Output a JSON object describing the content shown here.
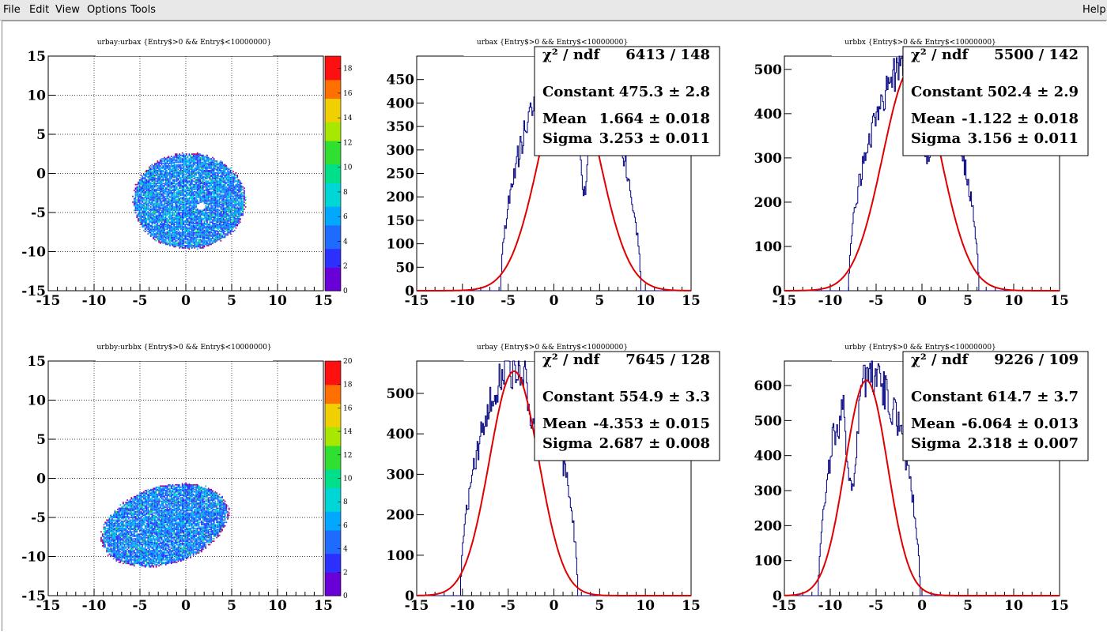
{
  "menu": {
    "file": "File",
    "edit": "Edit",
    "view": "View",
    "options": "Options",
    "tools": "Tools",
    "help": "Help"
  },
  "chart_data": [
    {
      "type": "heatmap",
      "title": "urbay:urbax {Entry$>0 && Entry$<10000000}",
      "xlim": [
        -15,
        15
      ],
      "ylim": [
        -15,
        15
      ],
      "xticks": [
        "-15",
        "-10",
        "-5",
        "0",
        "5",
        "10",
        "15"
      ],
      "yticks": [
        "-15",
        "-10",
        "-5",
        "0",
        "5",
        "10",
        "15"
      ],
      "zlim": [
        0,
        19
      ],
      "zticks": [
        "0",
        "2",
        "4",
        "6",
        "8",
        "10",
        "12",
        "14",
        "16",
        "18"
      ],
      "grid": true,
      "blob": {
        "cx": 0.3,
        "cy": -3.6,
        "rx": 6.1,
        "ry": 6.1,
        "hole": [
          1.6,
          -4.3
        ]
      }
    },
    {
      "type": "histogram",
      "title": "urbax {Entry$>0 && Entry$<10000000}",
      "xlim": [
        -15,
        15
      ],
      "ylim": [
        0,
        500
      ],
      "xticks": [
        "-15",
        "-10",
        "-5",
        "0",
        "5",
        "10",
        "15"
      ],
      "yticks": [
        "0",
        "50",
        "100",
        "150",
        "200",
        "250",
        "300",
        "350",
        "400",
        "450"
      ],
      "ytickvals": [
        0,
        50,
        100,
        150,
        200,
        250,
        300,
        350,
        400,
        450
      ],
      "fit": {
        "constant": 475.3,
        "mean": 1.664,
        "sigma": 3.253
      },
      "hist": {
        "lo": -5.8,
        "hi": 9.5,
        "dip": [
          2.4,
          4.2,
          0.55
        ]
      },
      "stats": [
        {
          "label": "χ² / ndf",
          "value": "6413 / 148"
        },
        {
          "label": "Constant",
          "value": "475.3 ± 2.8"
        },
        {
          "label": "Mean",
          "value": "1.664 ± 0.018"
        },
        {
          "label": "Sigma",
          "value": "3.253 ± 0.011"
        }
      ]
    },
    {
      "type": "histogram",
      "title": "urbbx {Entry$>0 && Entry$<10000000}",
      "xlim": [
        -15,
        15
      ],
      "ylim": [
        0,
        530
      ],
      "xticks": [
        "-15",
        "-10",
        "-5",
        "0",
        "5",
        "10",
        "15"
      ],
      "yticks": [
        "0",
        "100",
        "200",
        "300",
        "400",
        "500"
      ],
      "ytickvals": [
        0,
        100,
        200,
        300,
        400,
        500
      ],
      "fit": {
        "constant": 502.4,
        "mean": -1.122,
        "sigma": 3.156
      },
      "hist": {
        "lo": -8.0,
        "hi": 6.2,
        "dip": [
          -0.4,
          1.6,
          0.4
        ]
      },
      "stats": [
        {
          "label": "χ² / ndf",
          "value": "5500 / 142"
        },
        {
          "label": "Constant",
          "value": "502.4 ± 2.9"
        },
        {
          "label": "Mean",
          "value": "-1.122 ± 0.018"
        },
        {
          "label": "Sigma",
          "value": "3.156 ± 0.011"
        }
      ]
    },
    {
      "type": "heatmap",
      "title": "urbby:urbbx {Entry$>0 && Entry$<10000000}",
      "xlim": [
        -15,
        15
      ],
      "ylim": [
        -15,
        15
      ],
      "xticks": [
        "-15",
        "-10",
        "-5",
        "0",
        "5",
        "10",
        "15"
      ],
      "yticks": [
        "-15",
        "-10",
        "-5",
        "0",
        "5",
        "10",
        "15"
      ],
      "zlim": [
        0,
        20
      ],
      "zticks": [
        "0",
        "2",
        "4",
        "6",
        "8",
        "10",
        "12",
        "14",
        "16",
        "18",
        "20"
      ],
      "grid": true,
      "blob": {
        "cx": -2.0,
        "cy": -5.9,
        "rx": 7.6,
        "ry": 4.9,
        "tilt": -0.42
      }
    },
    {
      "type": "histogram",
      "title": "urbay {Entry$>0 && Entry$<10000000}",
      "xlim": [
        -15,
        15
      ],
      "ylim": [
        0,
        580
      ],
      "xticks": [
        "-15",
        "-10",
        "-5",
        "0",
        "5",
        "10",
        "15"
      ],
      "yticks": [
        "0",
        "100",
        "200",
        "300",
        "400",
        "500"
      ],
      "ytickvals": [
        0,
        100,
        200,
        300,
        400,
        500
      ],
      "fit": {
        "constant": 554.9,
        "mean": -4.353,
        "sigma": 2.687
      },
      "hist": {
        "lo": -10.2,
        "hi": 2.6,
        "dip": [
          -3.2,
          -1.6,
          0.25
        ]
      },
      "stats": [
        {
          "label": "χ² / ndf",
          "value": "7645 / 128"
        },
        {
          "label": "Constant",
          "value": "554.9 ± 3.3"
        },
        {
          "label": "Mean",
          "value": "-4.353 ± 0.015"
        },
        {
          "label": "Sigma",
          "value": "2.687 ± 0.008"
        }
      ]
    },
    {
      "type": "histogram",
      "title": "urbby {Entry$>0 && Entry$<10000000}",
      "xlim": [
        -15,
        15
      ],
      "ylim": [
        0,
        670
      ],
      "xticks": [
        "-15",
        "-10",
        "-5",
        "0",
        "5",
        "10",
        "15"
      ],
      "yticks": [
        "0",
        "100",
        "200",
        "300",
        "400",
        "500",
        "600"
      ],
      "ytickvals": [
        0,
        100,
        200,
        300,
        400,
        500,
        600
      ],
      "fit": {
        "constant": 614.7,
        "mean": -6.064,
        "sigma": 2.318
      },
      "hist": {
        "lo": -11.3,
        "hi": -0.2,
        "dip": [
          -8.5,
          -6.7,
          0.45
        ],
        "bump": [
          -9.8,
          0.12
        ]
      },
      "stats": [
        {
          "label": "χ² / ndf",
          "value": "9226 / 109"
        },
        {
          "label": "Constant",
          "value": "614.7 ± 3.7"
        },
        {
          "label": "Mean",
          "value": "-6.064 ± 0.013"
        },
        {
          "label": "Sigma",
          "value": "2.318 ± 0.007"
        }
      ]
    }
  ]
}
